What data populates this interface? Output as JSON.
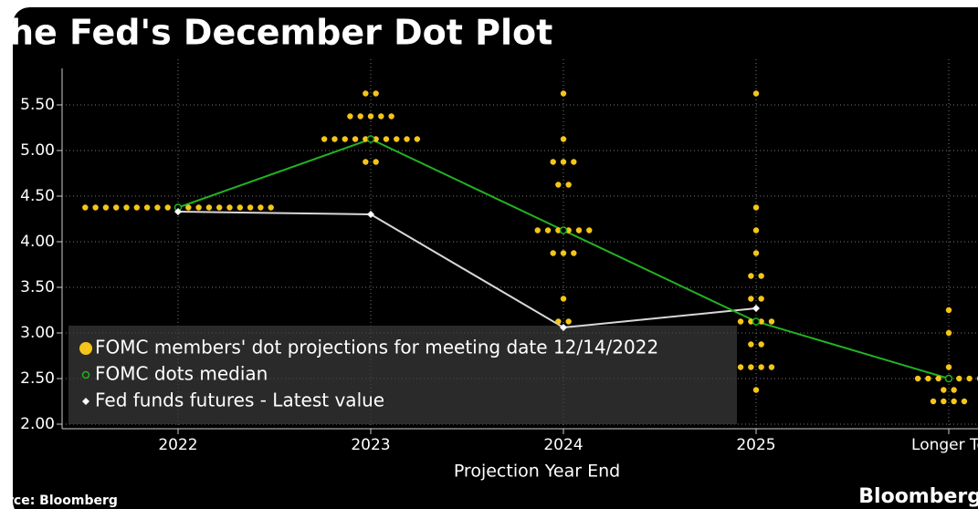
{
  "chart_data": {
    "type": "dot",
    "title": "he Fed's December Dot Plot",
    "x_label": "Projection Year End",
    "source": "rce: Bloomberg",
    "brand": "Bloomberg",
    "categories": [
      "2022",
      "2023",
      "2024",
      "2025",
      "Longer Te"
    ],
    "ylim": [
      1.95,
      5.9
    ],
    "yticks": [
      {
        "value": 2,
        "label": "2.00"
      },
      {
        "value": 2.5,
        "label": "2.50"
      },
      {
        "value": 3,
        "label": "3.00"
      },
      {
        "value": 3.5,
        "label": "3.50"
      },
      {
        "value": 4,
        "label": "4.00"
      },
      {
        "value": 4.5,
        "label": "4.50"
      },
      {
        "value": 5,
        "label": "5.00"
      },
      {
        "value": 5.5,
        "label": "5.50"
      }
    ],
    "grid": true,
    "series": [
      {
        "name": "FOMC members' dot projections for meeting date 12/14/2022",
        "color": "#f5c518",
        "values": [
          [
            4.375
          ],
          [
            5.625,
            5.375,
            5.125,
            4.875
          ],
          [
            5.625,
            5.125,
            4.875,
            4.625,
            4.125,
            3.875,
            3.375,
            3.125
          ],
          [
            5.625,
            4.375,
            4.125,
            3.875,
            3.625,
            3.375,
            3.125,
            2.875,
            2.625,
            2.375
          ],
          [
            3.25,
            3.0,
            2.625,
            2.5,
            2.375,
            2.25
          ]
        ],
        "counts": [
          [
            19
          ],
          [
            2,
            5,
            10,
            2
          ],
          [
            1,
            1,
            3,
            2,
            6,
            3,
            1,
            2
          ],
          [
            1,
            1,
            1,
            1,
            2,
            2,
            4,
            2,
            4,
            1
          ],
          [
            1,
            1,
            1,
            7,
            2,
            4
          ]
        ]
      },
      {
        "name": "FOMC dots median",
        "color": "#22b322",
        "values": [
          4.375,
          5.125,
          4.125,
          3.125,
          2.5
        ]
      },
      {
        "name": "Fed funds futures - Latest value",
        "color": "#d8d8d8",
        "values": [
          4.33,
          4.3,
          3.06,
          3.27,
          null
        ]
      }
    ]
  }
}
